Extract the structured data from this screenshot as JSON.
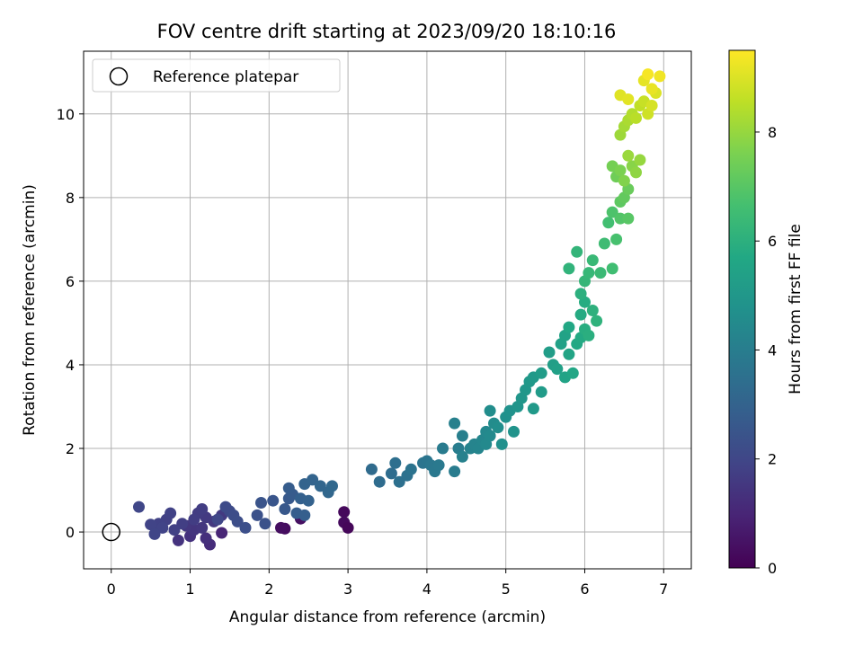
{
  "chart_data": {
    "type": "scatter",
    "title": "FOV centre drift starting at 2023/09/20 18:10:16",
    "xlabel": "Angular distance from reference (arcmin)",
    "ylabel": "Rotation from reference (arcmin)",
    "xlim": [
      -0.35,
      7.35
    ],
    "ylim": [
      -0.88,
      11.5
    ],
    "xticks": [
      0,
      1,
      2,
      3,
      4,
      5,
      6,
      7
    ],
    "yticks": [
      0,
      2,
      4,
      6,
      8,
      10
    ],
    "grid": true,
    "legend": {
      "position": "top-left",
      "entries": [
        "Reference platepar"
      ]
    },
    "reference_point": {
      "x": 0,
      "y": 0
    },
    "colorbar": {
      "label": "Hours from first FF file",
      "range": [
        0,
        9.5
      ],
      "ticks": [
        0,
        2,
        4,
        6,
        8
      ],
      "colormap": [
        "#440154",
        "#482475",
        "#414487",
        "#355f8d",
        "#2a788e",
        "#21918c",
        "#22a884",
        "#44bf70",
        "#7ad151",
        "#bddf26",
        "#fde725"
      ]
    },
    "points": [
      [
        2.2,
        0.08,
        0.3
      ],
      [
        2.15,
        0.1,
        0.35
      ],
      [
        2.4,
        0.32,
        0.4
      ],
      [
        2.95,
        0.48,
        0.2
      ],
      [
        2.95,
        0.23,
        0.25
      ],
      [
        3.0,
        0.1,
        0.15
      ],
      [
        1.4,
        -0.02,
        1.0
      ],
      [
        1.25,
        -0.3,
        1.2
      ],
      [
        1.2,
        -0.15,
        1.3
      ],
      [
        1.0,
        -0.1,
        1.35
      ],
      [
        0.85,
        -0.2,
        1.4
      ],
      [
        1.05,
        0.05,
        1.45
      ],
      [
        1.15,
        0.1,
        1.5
      ],
      [
        0.95,
        0.15,
        1.5
      ],
      [
        1.3,
        0.25,
        1.55
      ],
      [
        1.2,
        0.35,
        1.6
      ],
      [
        1.4,
        0.4,
        1.6
      ],
      [
        1.1,
        0.45,
        1.65
      ],
      [
        1.15,
        0.55,
        1.7
      ],
      [
        1.05,
        0.3,
        1.7
      ],
      [
        0.9,
        0.2,
        1.75
      ],
      [
        0.8,
        0.05,
        1.8
      ],
      [
        0.7,
        0.3,
        1.8
      ],
      [
        0.75,
        0.45,
        1.85
      ],
      [
        0.6,
        0.2,
        1.85
      ],
      [
        0.5,
        0.18,
        1.9
      ],
      [
        0.65,
        0.1,
        1.9
      ],
      [
        0.55,
        -0.05,
        1.95
      ],
      [
        0.35,
        0.6,
        2.0
      ],
      [
        1.35,
        0.3,
        2.0
      ],
      [
        1.5,
        0.5,
        2.1
      ],
      [
        1.45,
        0.6,
        2.15
      ],
      [
        1.55,
        0.4,
        2.2
      ],
      [
        1.6,
        0.25,
        2.25
      ],
      [
        1.7,
        0.1,
        2.3
      ],
      [
        1.85,
        0.4,
        2.35
      ],
      [
        1.95,
        0.2,
        2.4
      ],
      [
        1.9,
        0.7,
        2.45
      ],
      [
        2.05,
        0.75,
        2.5
      ],
      [
        2.2,
        0.55,
        2.6
      ],
      [
        2.25,
        0.8,
        2.65
      ],
      [
        2.3,
        0.9,
        2.7
      ],
      [
        2.25,
        1.05,
        2.75
      ],
      [
        2.35,
        0.45,
        2.8
      ],
      [
        2.45,
        0.4,
        2.85
      ],
      [
        2.4,
        0.8,
        2.9
      ],
      [
        2.5,
        0.75,
        2.95
      ],
      [
        2.45,
        1.15,
        3.0
      ],
      [
        2.55,
        1.25,
        3.05
      ],
      [
        2.65,
        1.1,
        3.1
      ],
      [
        2.75,
        0.95,
        3.15
      ],
      [
        2.8,
        1.1,
        3.2
      ],
      [
        3.3,
        1.5,
        3.3
      ],
      [
        3.4,
        1.2,
        3.35
      ],
      [
        3.55,
        1.4,
        3.4
      ],
      [
        3.6,
        1.65,
        3.45
      ],
      [
        3.65,
        1.2,
        3.5
      ],
      [
        3.75,
        1.35,
        3.55
      ],
      [
        3.8,
        1.5,
        3.6
      ],
      [
        3.95,
        1.65,
        3.65
      ],
      [
        4.0,
        1.7,
        3.7
      ],
      [
        4.05,
        1.6,
        3.75
      ],
      [
        4.1,
        1.45,
        3.8
      ],
      [
        4.15,
        1.6,
        3.85
      ],
      [
        4.2,
        2.0,
        3.9
      ],
      [
        4.35,
        1.45,
        3.95
      ],
      [
        4.4,
        2.0,
        4.0
      ],
      [
        4.45,
        2.3,
        4.05
      ],
      [
        4.35,
        2.6,
        4.1
      ],
      [
        4.45,
        1.8,
        4.15
      ],
      [
        4.55,
        2.0,
        4.2
      ],
      [
        4.6,
        2.1,
        4.25
      ],
      [
        4.65,
        2.0,
        4.3
      ],
      [
        4.7,
        2.2,
        4.35
      ],
      [
        4.75,
        2.4,
        4.4
      ],
      [
        4.75,
        2.1,
        4.45
      ],
      [
        4.8,
        2.3,
        4.5
      ],
      [
        4.85,
        2.6,
        4.55
      ],
      [
        4.8,
        2.9,
        4.6
      ],
      [
        4.9,
        2.5,
        4.65
      ],
      [
        4.95,
        2.1,
        4.7
      ],
      [
        5.0,
        2.75,
        4.75
      ],
      [
        5.05,
        2.9,
        4.8
      ],
      [
        5.1,
        2.4,
        4.85
      ],
      [
        5.15,
        3.0,
        4.9
      ],
      [
        5.2,
        3.2,
        4.95
      ],
      [
        5.25,
        3.4,
        5.0
      ],
      [
        5.3,
        3.6,
        5.05
      ],
      [
        5.35,
        3.7,
        5.1
      ],
      [
        5.35,
        2.95,
        5.1
      ],
      [
        5.45,
        3.35,
        5.15
      ],
      [
        5.45,
        3.8,
        5.2
      ],
      [
        5.55,
        4.3,
        5.25
      ],
      [
        5.6,
        4.0,
        5.3
      ],
      [
        5.65,
        3.9,
        5.35
      ],
      [
        5.7,
        4.5,
        5.4
      ],
      [
        5.75,
        4.7,
        5.45
      ],
      [
        5.75,
        3.7,
        5.5
      ],
      [
        5.8,
        4.25,
        5.55
      ],
      [
        5.85,
        3.8,
        5.6
      ],
      [
        5.8,
        4.9,
        5.65
      ],
      [
        5.9,
        4.5,
        5.7
      ],
      [
        5.95,
        4.65,
        5.75
      ],
      [
        5.95,
        5.2,
        5.8
      ],
      [
        6.0,
        5.5,
        5.85
      ],
      [
        6.0,
        4.85,
        5.9
      ],
      [
        6.05,
        4.7,
        5.95
      ],
      [
        5.95,
        5.7,
        6.0
      ],
      [
        6.1,
        5.3,
        6.05
      ],
      [
        6.15,
        5.05,
        6.1
      ],
      [
        5.8,
        6.3,
        6.15
      ],
      [
        5.9,
        6.7,
        6.2
      ],
      [
        6.0,
        6.0,
        6.25
      ],
      [
        6.05,
        6.2,
        6.3
      ],
      [
        6.1,
        6.5,
        6.35
      ],
      [
        6.2,
        6.2,
        6.4
      ],
      [
        6.25,
        6.9,
        6.5
      ],
      [
        6.35,
        6.3,
        6.55
      ],
      [
        6.3,
        7.4,
        6.6
      ],
      [
        6.4,
        7.0,
        6.7
      ],
      [
        6.35,
        7.65,
        6.8
      ],
      [
        6.45,
        7.5,
        6.9
      ],
      [
        6.55,
        7.5,
        7.0
      ],
      [
        6.45,
        7.9,
        7.1
      ],
      [
        6.5,
        8.0,
        7.2
      ],
      [
        6.55,
        8.2,
        7.3
      ],
      [
        6.4,
        8.5,
        7.4
      ],
      [
        6.35,
        8.75,
        7.5
      ],
      [
        6.45,
        8.65,
        7.6
      ],
      [
        6.5,
        8.4,
        7.7
      ],
      [
        6.6,
        8.75,
        7.8
      ],
      [
        6.65,
        8.6,
        7.9
      ],
      [
        6.7,
        8.9,
        8.0
      ],
      [
        6.55,
        9.0,
        8.05
      ],
      [
        6.45,
        9.5,
        8.1
      ],
      [
        6.5,
        9.7,
        8.2
      ],
      [
        6.55,
        9.85,
        8.3
      ],
      [
        6.6,
        10.0,
        8.4
      ],
      [
        6.65,
        9.9,
        8.5
      ],
      [
        6.7,
        10.2,
        8.6
      ],
      [
        6.75,
        10.3,
        8.7
      ],
      [
        6.8,
        10.0,
        8.8
      ],
      [
        6.85,
        10.2,
        8.9
      ],
      [
        6.9,
        10.5,
        9.0
      ],
      [
        6.45,
        10.45,
        9.05
      ],
      [
        6.55,
        10.35,
        9.1
      ],
      [
        6.75,
        10.8,
        9.15
      ],
      [
        6.85,
        10.6,
        9.2
      ],
      [
        6.95,
        10.9,
        9.3
      ],
      [
        6.8,
        10.95,
        9.4
      ]
    ]
  }
}
